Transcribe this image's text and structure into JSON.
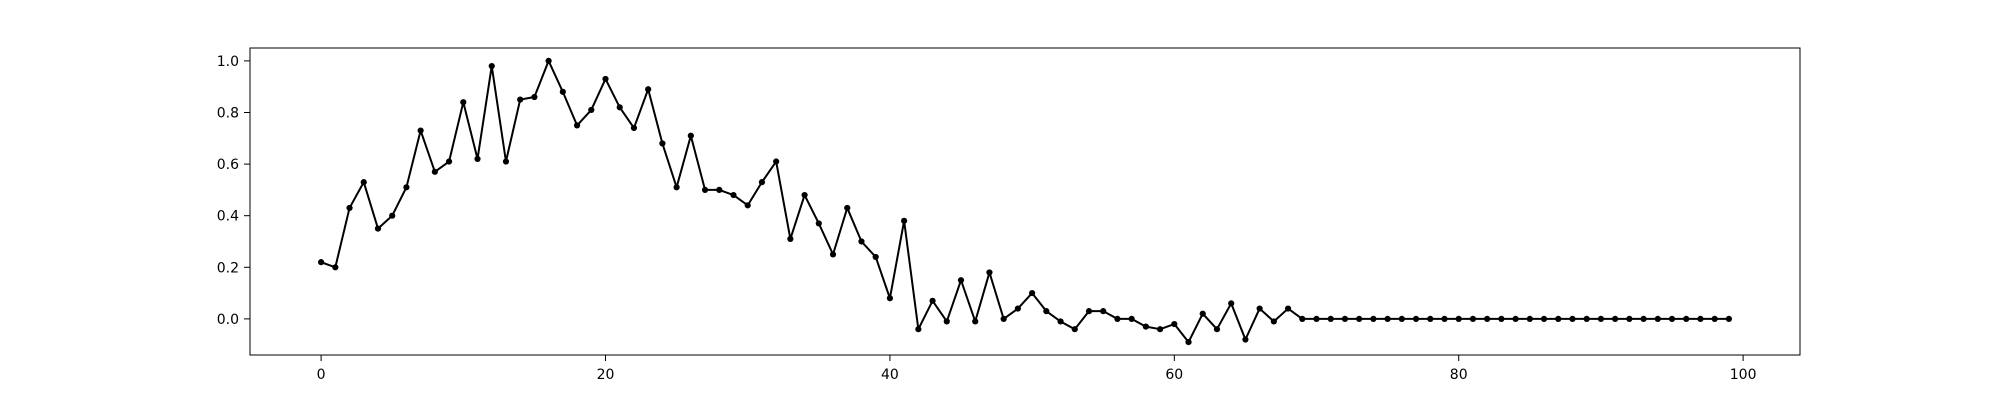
{
  "chart_data": {
    "type": "line",
    "title": "",
    "xlabel": "",
    "ylabel": "",
    "xlim": [
      -5,
      104
    ],
    "ylim": [
      -0.14,
      1.05
    ],
    "xticks": [
      0,
      20,
      40,
      60,
      80,
      100
    ],
    "xtick_labels": [
      "0",
      "20",
      "40",
      "60",
      "80",
      "100"
    ],
    "yticks": [
      0.0,
      0.2,
      0.4,
      0.6,
      0.8,
      1.0
    ],
    "ytick_labels": [
      "0.0",
      "0.2",
      "0.4",
      "0.6",
      "0.8",
      "1.0"
    ],
    "grid": false,
    "series": [
      {
        "color": "#000000",
        "marker": "circle",
        "x": [
          0,
          1,
          2,
          3,
          4,
          5,
          6,
          7,
          8,
          9,
          10,
          11,
          12,
          13,
          14,
          15,
          16,
          17,
          18,
          19,
          20,
          21,
          22,
          23,
          24,
          25,
          26,
          27,
          28,
          29,
          30,
          31,
          32,
          33,
          34,
          35,
          36,
          37,
          38,
          39,
          40,
          41,
          42,
          43,
          44,
          45,
          46,
          47,
          48,
          49,
          50,
          51,
          52,
          53,
          54,
          55,
          56,
          57,
          58,
          59,
          60,
          61,
          62,
          63,
          64,
          65,
          66,
          67,
          68,
          69,
          70,
          71,
          72,
          73,
          74,
          75,
          76,
          77,
          78,
          79,
          80,
          81,
          82,
          83,
          84,
          85,
          86,
          87,
          88,
          89,
          90,
          91,
          92,
          93,
          94,
          95,
          96,
          97,
          98,
          99
        ],
        "values": [
          0.22,
          0.2,
          0.43,
          0.53,
          0.35,
          0.4,
          0.51,
          0.73,
          0.57,
          0.61,
          0.84,
          0.62,
          0.98,
          0.61,
          0.85,
          0.86,
          1.0,
          0.88,
          0.75,
          0.81,
          0.93,
          0.82,
          0.74,
          0.89,
          0.68,
          0.51,
          0.71,
          0.5,
          0.5,
          0.48,
          0.44,
          0.53,
          0.61,
          0.31,
          0.48,
          0.37,
          0.25,
          0.43,
          0.3,
          0.24,
          0.08,
          0.38,
          -0.04,
          0.07,
          -0.01,
          0.15,
          -0.01,
          0.18,
          0.0,
          0.04,
          0.1,
          0.03,
          -0.01,
          -0.04,
          0.03,
          0.03,
          0.0,
          0.0,
          -0.03,
          -0.04,
          -0.02,
          -0.09,
          0.02,
          -0.04,
          0.06,
          -0.08,
          0.04,
          -0.01,
          0.04,
          0.0,
          0.0,
          0.0,
          0.0,
          0.0,
          0.0,
          0.0,
          0.0,
          0.0,
          0.0,
          0.0,
          0.0,
          0.0,
          0.0,
          0.0,
          0.0,
          0.0,
          0.0,
          0.0,
          0.0,
          0.0,
          0.0,
          0.0,
          0.0,
          0.0,
          0.0,
          0.0,
          0.0,
          0.0,
          0.0,
          0.0
        ]
      }
    ]
  }
}
